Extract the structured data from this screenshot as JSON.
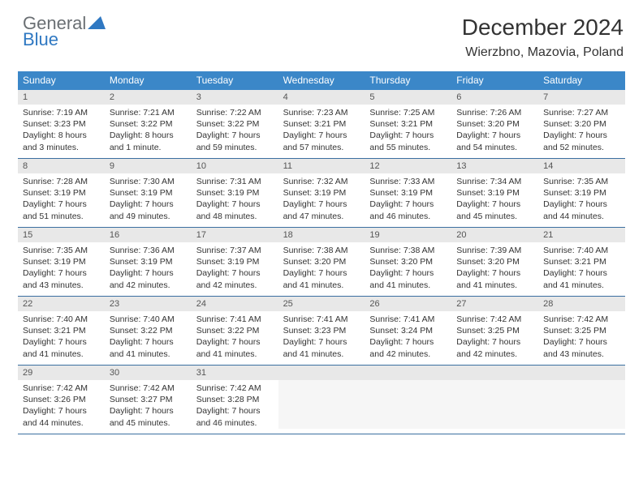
{
  "logo": {
    "line1": "General",
    "line2": "Blue"
  },
  "title": "December 2024",
  "location": "Wierzbno, Mazovia, Poland",
  "colors": {
    "header_bar": "#3b87c8",
    "daynum_bg": "#e8e8e8",
    "week_divider": "#3b6fa0",
    "logo_gray": "#6a6f73",
    "logo_blue": "#2f78c2"
  },
  "daysOfWeek": [
    "Sunday",
    "Monday",
    "Tuesday",
    "Wednesday",
    "Thursday",
    "Friday",
    "Saturday"
  ],
  "weeks": [
    [
      {
        "n": "1",
        "sr": "Sunrise: 7:19 AM",
        "ss": "Sunset: 3:23 PM",
        "dl1": "Daylight: 8 hours",
        "dl2": "and 3 minutes."
      },
      {
        "n": "2",
        "sr": "Sunrise: 7:21 AM",
        "ss": "Sunset: 3:22 PM",
        "dl1": "Daylight: 8 hours",
        "dl2": "and 1 minute."
      },
      {
        "n": "3",
        "sr": "Sunrise: 7:22 AM",
        "ss": "Sunset: 3:22 PM",
        "dl1": "Daylight: 7 hours",
        "dl2": "and 59 minutes."
      },
      {
        "n": "4",
        "sr": "Sunrise: 7:23 AM",
        "ss": "Sunset: 3:21 PM",
        "dl1": "Daylight: 7 hours",
        "dl2": "and 57 minutes."
      },
      {
        "n": "5",
        "sr": "Sunrise: 7:25 AM",
        "ss": "Sunset: 3:21 PM",
        "dl1": "Daylight: 7 hours",
        "dl2": "and 55 minutes."
      },
      {
        "n": "6",
        "sr": "Sunrise: 7:26 AM",
        "ss": "Sunset: 3:20 PM",
        "dl1": "Daylight: 7 hours",
        "dl2": "and 54 minutes."
      },
      {
        "n": "7",
        "sr": "Sunrise: 7:27 AM",
        "ss": "Sunset: 3:20 PM",
        "dl1": "Daylight: 7 hours",
        "dl2": "and 52 minutes."
      }
    ],
    [
      {
        "n": "8",
        "sr": "Sunrise: 7:28 AM",
        "ss": "Sunset: 3:19 PM",
        "dl1": "Daylight: 7 hours",
        "dl2": "and 51 minutes."
      },
      {
        "n": "9",
        "sr": "Sunrise: 7:30 AM",
        "ss": "Sunset: 3:19 PM",
        "dl1": "Daylight: 7 hours",
        "dl2": "and 49 minutes."
      },
      {
        "n": "10",
        "sr": "Sunrise: 7:31 AM",
        "ss": "Sunset: 3:19 PM",
        "dl1": "Daylight: 7 hours",
        "dl2": "and 48 minutes."
      },
      {
        "n": "11",
        "sr": "Sunrise: 7:32 AM",
        "ss": "Sunset: 3:19 PM",
        "dl1": "Daylight: 7 hours",
        "dl2": "and 47 minutes."
      },
      {
        "n": "12",
        "sr": "Sunrise: 7:33 AM",
        "ss": "Sunset: 3:19 PM",
        "dl1": "Daylight: 7 hours",
        "dl2": "and 46 minutes."
      },
      {
        "n": "13",
        "sr": "Sunrise: 7:34 AM",
        "ss": "Sunset: 3:19 PM",
        "dl1": "Daylight: 7 hours",
        "dl2": "and 45 minutes."
      },
      {
        "n": "14",
        "sr": "Sunrise: 7:35 AM",
        "ss": "Sunset: 3:19 PM",
        "dl1": "Daylight: 7 hours",
        "dl2": "and 44 minutes."
      }
    ],
    [
      {
        "n": "15",
        "sr": "Sunrise: 7:35 AM",
        "ss": "Sunset: 3:19 PM",
        "dl1": "Daylight: 7 hours",
        "dl2": "and 43 minutes."
      },
      {
        "n": "16",
        "sr": "Sunrise: 7:36 AM",
        "ss": "Sunset: 3:19 PM",
        "dl1": "Daylight: 7 hours",
        "dl2": "and 42 minutes."
      },
      {
        "n": "17",
        "sr": "Sunrise: 7:37 AM",
        "ss": "Sunset: 3:19 PM",
        "dl1": "Daylight: 7 hours",
        "dl2": "and 42 minutes."
      },
      {
        "n": "18",
        "sr": "Sunrise: 7:38 AM",
        "ss": "Sunset: 3:20 PM",
        "dl1": "Daylight: 7 hours",
        "dl2": "and 41 minutes."
      },
      {
        "n": "19",
        "sr": "Sunrise: 7:38 AM",
        "ss": "Sunset: 3:20 PM",
        "dl1": "Daylight: 7 hours",
        "dl2": "and 41 minutes."
      },
      {
        "n": "20",
        "sr": "Sunrise: 7:39 AM",
        "ss": "Sunset: 3:20 PM",
        "dl1": "Daylight: 7 hours",
        "dl2": "and 41 minutes."
      },
      {
        "n": "21",
        "sr": "Sunrise: 7:40 AM",
        "ss": "Sunset: 3:21 PM",
        "dl1": "Daylight: 7 hours",
        "dl2": "and 41 minutes."
      }
    ],
    [
      {
        "n": "22",
        "sr": "Sunrise: 7:40 AM",
        "ss": "Sunset: 3:21 PM",
        "dl1": "Daylight: 7 hours",
        "dl2": "and 41 minutes."
      },
      {
        "n": "23",
        "sr": "Sunrise: 7:40 AM",
        "ss": "Sunset: 3:22 PM",
        "dl1": "Daylight: 7 hours",
        "dl2": "and 41 minutes."
      },
      {
        "n": "24",
        "sr": "Sunrise: 7:41 AM",
        "ss": "Sunset: 3:22 PM",
        "dl1": "Daylight: 7 hours",
        "dl2": "and 41 minutes."
      },
      {
        "n": "25",
        "sr": "Sunrise: 7:41 AM",
        "ss": "Sunset: 3:23 PM",
        "dl1": "Daylight: 7 hours",
        "dl2": "and 41 minutes."
      },
      {
        "n": "26",
        "sr": "Sunrise: 7:41 AM",
        "ss": "Sunset: 3:24 PM",
        "dl1": "Daylight: 7 hours",
        "dl2": "and 42 minutes."
      },
      {
        "n": "27",
        "sr": "Sunrise: 7:42 AM",
        "ss": "Sunset: 3:25 PM",
        "dl1": "Daylight: 7 hours",
        "dl2": "and 42 minutes."
      },
      {
        "n": "28",
        "sr": "Sunrise: 7:42 AM",
        "ss": "Sunset: 3:25 PM",
        "dl1": "Daylight: 7 hours",
        "dl2": "and 43 minutes."
      }
    ],
    [
      {
        "n": "29",
        "sr": "Sunrise: 7:42 AM",
        "ss": "Sunset: 3:26 PM",
        "dl1": "Daylight: 7 hours",
        "dl2": "and 44 minutes."
      },
      {
        "n": "30",
        "sr": "Sunrise: 7:42 AM",
        "ss": "Sunset: 3:27 PM",
        "dl1": "Daylight: 7 hours",
        "dl2": "and 45 minutes."
      },
      {
        "n": "31",
        "sr": "Sunrise: 7:42 AM",
        "ss": "Sunset: 3:28 PM",
        "dl1": "Daylight: 7 hours",
        "dl2": "and 46 minutes."
      },
      {
        "n": "",
        "empty": true
      },
      {
        "n": "",
        "empty": true
      },
      {
        "n": "",
        "empty": true
      },
      {
        "n": "",
        "empty": true
      }
    ]
  ]
}
